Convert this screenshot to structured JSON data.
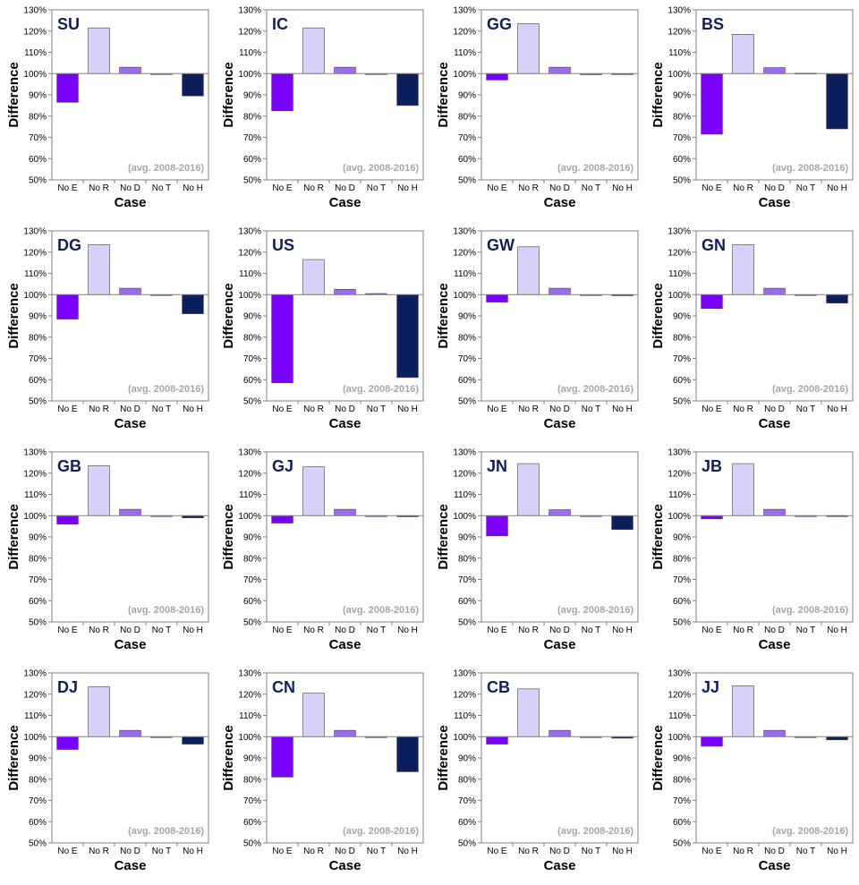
{
  "chart_data": [
    {
      "type": "bar",
      "title": "SU",
      "annotation": "(avg. 2008-2016)",
      "xlabel": "Case",
      "ylabel": "Difference",
      "categories": [
        "No E",
        "No R",
        "No D",
        "No T",
        "No H"
      ],
      "values": [
        86.5,
        121.5,
        103,
        99.8,
        89.5
      ],
      "ylim": [
        50,
        130
      ],
      "yticks": [
        "50%",
        "60%",
        "70%",
        "80%",
        "90%",
        "100%",
        "110%",
        "120%",
        "130%"
      ],
      "baseline": 100,
      "grid": false
    },
    {
      "type": "bar",
      "title": "IC",
      "annotation": "(avg. 2008-2016)",
      "xlabel": "Case",
      "ylabel": "Difference",
      "categories": [
        "No E",
        "No R",
        "No D",
        "No T",
        "No H"
      ],
      "values": [
        82.5,
        121.5,
        103,
        99.8,
        85
      ],
      "ylim": [
        50,
        130
      ],
      "yticks": [
        "50%",
        "60%",
        "70%",
        "80%",
        "90%",
        "100%",
        "110%",
        "120%",
        "130%"
      ],
      "baseline": 100,
      "grid": false
    },
    {
      "type": "bar",
      "title": "GG",
      "annotation": "(avg. 2008-2016)",
      "xlabel": "Case",
      "ylabel": "Difference",
      "categories": [
        "No E",
        "No R",
        "No D",
        "No T",
        "No H"
      ],
      "values": [
        97,
        123.5,
        103,
        99.5,
        99.8
      ],
      "ylim": [
        50,
        130
      ],
      "yticks": [
        "50%",
        "60%",
        "70%",
        "80%",
        "90%",
        "100%",
        "110%",
        "120%",
        "130%"
      ],
      "baseline": 100,
      "grid": false
    },
    {
      "type": "bar",
      "title": "BS",
      "annotation": "(avg. 2008-2016)",
      "xlabel": "Case",
      "ylabel": "Difference",
      "categories": [
        "No E",
        "No R",
        "No D",
        "No T",
        "No H"
      ],
      "values": [
        71.5,
        118.5,
        102.8,
        100.2,
        74
      ],
      "ylim": [
        50,
        130
      ],
      "yticks": [
        "50%",
        "60%",
        "70%",
        "80%",
        "90%",
        "100%",
        "110%",
        "120%",
        "130%"
      ],
      "baseline": 100,
      "grid": false
    },
    {
      "type": "bar",
      "title": "DG",
      "annotation": "(avg. 2008-2016)",
      "xlabel": "Case",
      "ylabel": "Difference",
      "categories": [
        "No E",
        "No R",
        "No D",
        "No T",
        "No H"
      ],
      "values": [
        88.5,
        123.5,
        103,
        99.8,
        91
      ],
      "ylim": [
        50,
        130
      ],
      "yticks": [
        "50%",
        "60%",
        "70%",
        "80%",
        "90%",
        "100%",
        "110%",
        "120%",
        "130%"
      ],
      "baseline": 100,
      "grid": false
    },
    {
      "type": "bar",
      "title": "US",
      "annotation": "(avg. 2008-2016)",
      "xlabel": "Case",
      "ylabel": "Difference",
      "categories": [
        "No E",
        "No R",
        "No D",
        "No T",
        "No H"
      ],
      "values": [
        58.5,
        116.5,
        102.5,
        100.5,
        61
      ],
      "ylim": [
        50,
        130
      ],
      "yticks": [
        "50%",
        "60%",
        "70%",
        "80%",
        "90%",
        "100%",
        "110%",
        "120%",
        "130%"
      ],
      "baseline": 100,
      "grid": false
    },
    {
      "type": "bar",
      "title": "GW",
      "annotation": "(avg. 2008-2016)",
      "xlabel": "Case",
      "ylabel": "Difference",
      "categories": [
        "No E",
        "No R",
        "No D",
        "No T",
        "No H"
      ],
      "values": [
        96.5,
        122.5,
        103,
        99.6,
        99.5
      ],
      "ylim": [
        50,
        130
      ],
      "yticks": [
        "50%",
        "60%",
        "70%",
        "80%",
        "90%",
        "100%",
        "110%",
        "120%",
        "130%"
      ],
      "baseline": 100,
      "grid": false
    },
    {
      "type": "bar",
      "title": "GN",
      "annotation": "(avg. 2008-2016)",
      "xlabel": "Case",
      "ylabel": "Difference",
      "categories": [
        "No E",
        "No R",
        "No D",
        "No T",
        "No H"
      ],
      "values": [
        93.5,
        123.5,
        103,
        99.6,
        96
      ],
      "ylim": [
        50,
        130
      ],
      "yticks": [
        "50%",
        "60%",
        "70%",
        "80%",
        "90%",
        "100%",
        "110%",
        "120%",
        "130%"
      ],
      "baseline": 100,
      "grid": false
    },
    {
      "type": "bar",
      "title": "GB",
      "annotation": "(avg. 2008-2016)",
      "xlabel": "Case",
      "ylabel": "Difference",
      "categories": [
        "No E",
        "No R",
        "No D",
        "No T",
        "No H"
      ],
      "values": [
        96,
        123.5,
        103,
        99.6,
        99
      ],
      "ylim": [
        50,
        130
      ],
      "yticks": [
        "50%",
        "60%",
        "70%",
        "80%",
        "90%",
        "100%",
        "110%",
        "120%",
        "130%"
      ],
      "baseline": 100,
      "grid": false
    },
    {
      "type": "bar",
      "title": "GJ",
      "annotation": "(avg. 2008-2016)",
      "xlabel": "Case",
      "ylabel": "Difference",
      "categories": [
        "No E",
        "No R",
        "No D",
        "No T",
        "No H"
      ],
      "values": [
        96.5,
        123,
        103,
        99.6,
        99.5
      ],
      "ylim": [
        50,
        130
      ],
      "yticks": [
        "50%",
        "60%",
        "70%",
        "80%",
        "90%",
        "100%",
        "110%",
        "120%",
        "130%"
      ],
      "baseline": 100,
      "grid": false
    },
    {
      "type": "bar",
      "title": "JN",
      "annotation": "(avg. 2008-2016)",
      "xlabel": "Case",
      "ylabel": "Difference",
      "categories": [
        "No E",
        "No R",
        "No D",
        "No T",
        "No H"
      ],
      "values": [
        90.5,
        124.5,
        102.8,
        99.8,
        93.5
      ],
      "ylim": [
        50,
        130
      ],
      "yticks": [
        "50%",
        "60%",
        "70%",
        "80%",
        "90%",
        "100%",
        "110%",
        "120%",
        "130%"
      ],
      "baseline": 100,
      "grid": false
    },
    {
      "type": "bar",
      "title": "JB",
      "annotation": "(avg. 2008-2016)",
      "xlabel": "Case",
      "ylabel": "Difference",
      "categories": [
        "No E",
        "No R",
        "No D",
        "No T",
        "No H"
      ],
      "values": [
        98.5,
        124.5,
        103,
        99.6,
        99.9
      ],
      "ylim": [
        50,
        130
      ],
      "yticks": [
        "50%",
        "60%",
        "70%",
        "80%",
        "90%",
        "100%",
        "110%",
        "120%",
        "130%"
      ],
      "baseline": 100,
      "grid": false
    },
    {
      "type": "bar",
      "title": "DJ",
      "annotation": "(avg. 2008-2016)",
      "xlabel": "Case",
      "ylabel": "Difference",
      "categories": [
        "No E",
        "No R",
        "No D",
        "No T",
        "No H"
      ],
      "values": [
        94,
        123.5,
        103,
        99.6,
        96.5
      ],
      "ylim": [
        50,
        130
      ],
      "yticks": [
        "50%",
        "60%",
        "70%",
        "80%",
        "90%",
        "100%",
        "110%",
        "120%",
        "130%"
      ],
      "baseline": 100,
      "grid": false
    },
    {
      "type": "bar",
      "title": "CN",
      "annotation": "(avg. 2008-2016)",
      "xlabel": "Case",
      "ylabel": "Difference",
      "categories": [
        "No E",
        "No R",
        "No D",
        "No T",
        "No H"
      ],
      "values": [
        81,
        120.5,
        103,
        99.9,
        83.5
      ],
      "ylim": [
        50,
        130
      ],
      "yticks": [
        "50%",
        "60%",
        "70%",
        "80%",
        "90%",
        "100%",
        "110%",
        "120%",
        "130%"
      ],
      "baseline": 100,
      "grid": false
    },
    {
      "type": "bar",
      "title": "CB",
      "annotation": "(avg. 2008-2016)",
      "xlabel": "Case",
      "ylabel": "Difference",
      "categories": [
        "No E",
        "No R",
        "No D",
        "No T",
        "No H"
      ],
      "values": [
        96.5,
        122.5,
        103,
        99.6,
        99.3
      ],
      "ylim": [
        50,
        130
      ],
      "yticks": [
        "50%",
        "60%",
        "70%",
        "80%",
        "90%",
        "100%",
        "110%",
        "120%",
        "130%"
      ],
      "baseline": 100,
      "grid": false
    },
    {
      "type": "bar",
      "title": "JJ",
      "annotation": "(avg. 2008-2016)",
      "xlabel": "Case",
      "ylabel": "Difference",
      "categories": [
        "No E",
        "No R",
        "No D",
        "No T",
        "No H"
      ],
      "values": [
        95.5,
        124,
        103,
        99.6,
        98.5
      ],
      "ylim": [
        50,
        130
      ],
      "yticks": [
        "50%",
        "60%",
        "70%",
        "80%",
        "90%",
        "100%",
        "110%",
        "120%",
        "130%"
      ],
      "baseline": 100,
      "grid": false
    }
  ],
  "colors": {
    "bars": [
      "#7b00ff",
      "#d4d2fa",
      "#9e6bf2",
      "#a04ad8",
      "#0a1f5c"
    ],
    "title": "#0f1f5c",
    "annotation": "#a6a6a6"
  }
}
